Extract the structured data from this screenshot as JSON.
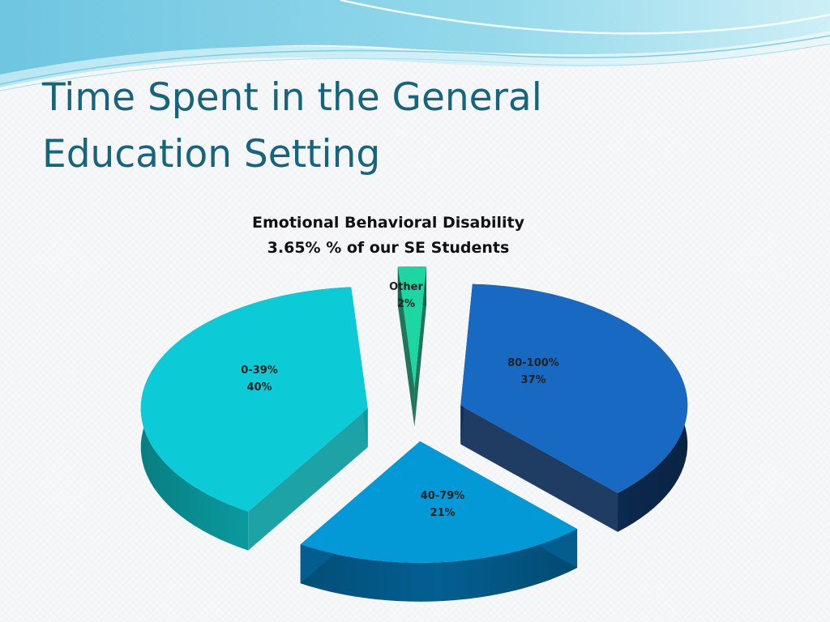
{
  "slide": {
    "title": "Time Spent in the General Education Setting"
  },
  "chart_data": {
    "type": "pie",
    "title_lines": [
      "Emotional Behavioral Disability",
      "3.65% % of our SE Students"
    ],
    "slices": [
      {
        "name": "80-100%",
        "percent_label": "37%",
        "value": 37,
        "color": "#1769c2",
        "side_color": "#0c2d55"
      },
      {
        "name": "40-79%",
        "percent_label": "21%",
        "value": 21,
        "color": "#0399d6",
        "side_color": "#035f91"
      },
      {
        "name": "0-39%",
        "percent_label": "40%",
        "value": 40,
        "color": "#0ccbd6",
        "side_color": "#0a9a9e"
      },
      {
        "name": "Other",
        "percent_label": "2%",
        "value": 2,
        "color": "#1ed6a2",
        "side_color": "#0d6a4c"
      }
    ],
    "legend": "none",
    "style": "3d-exploded"
  }
}
